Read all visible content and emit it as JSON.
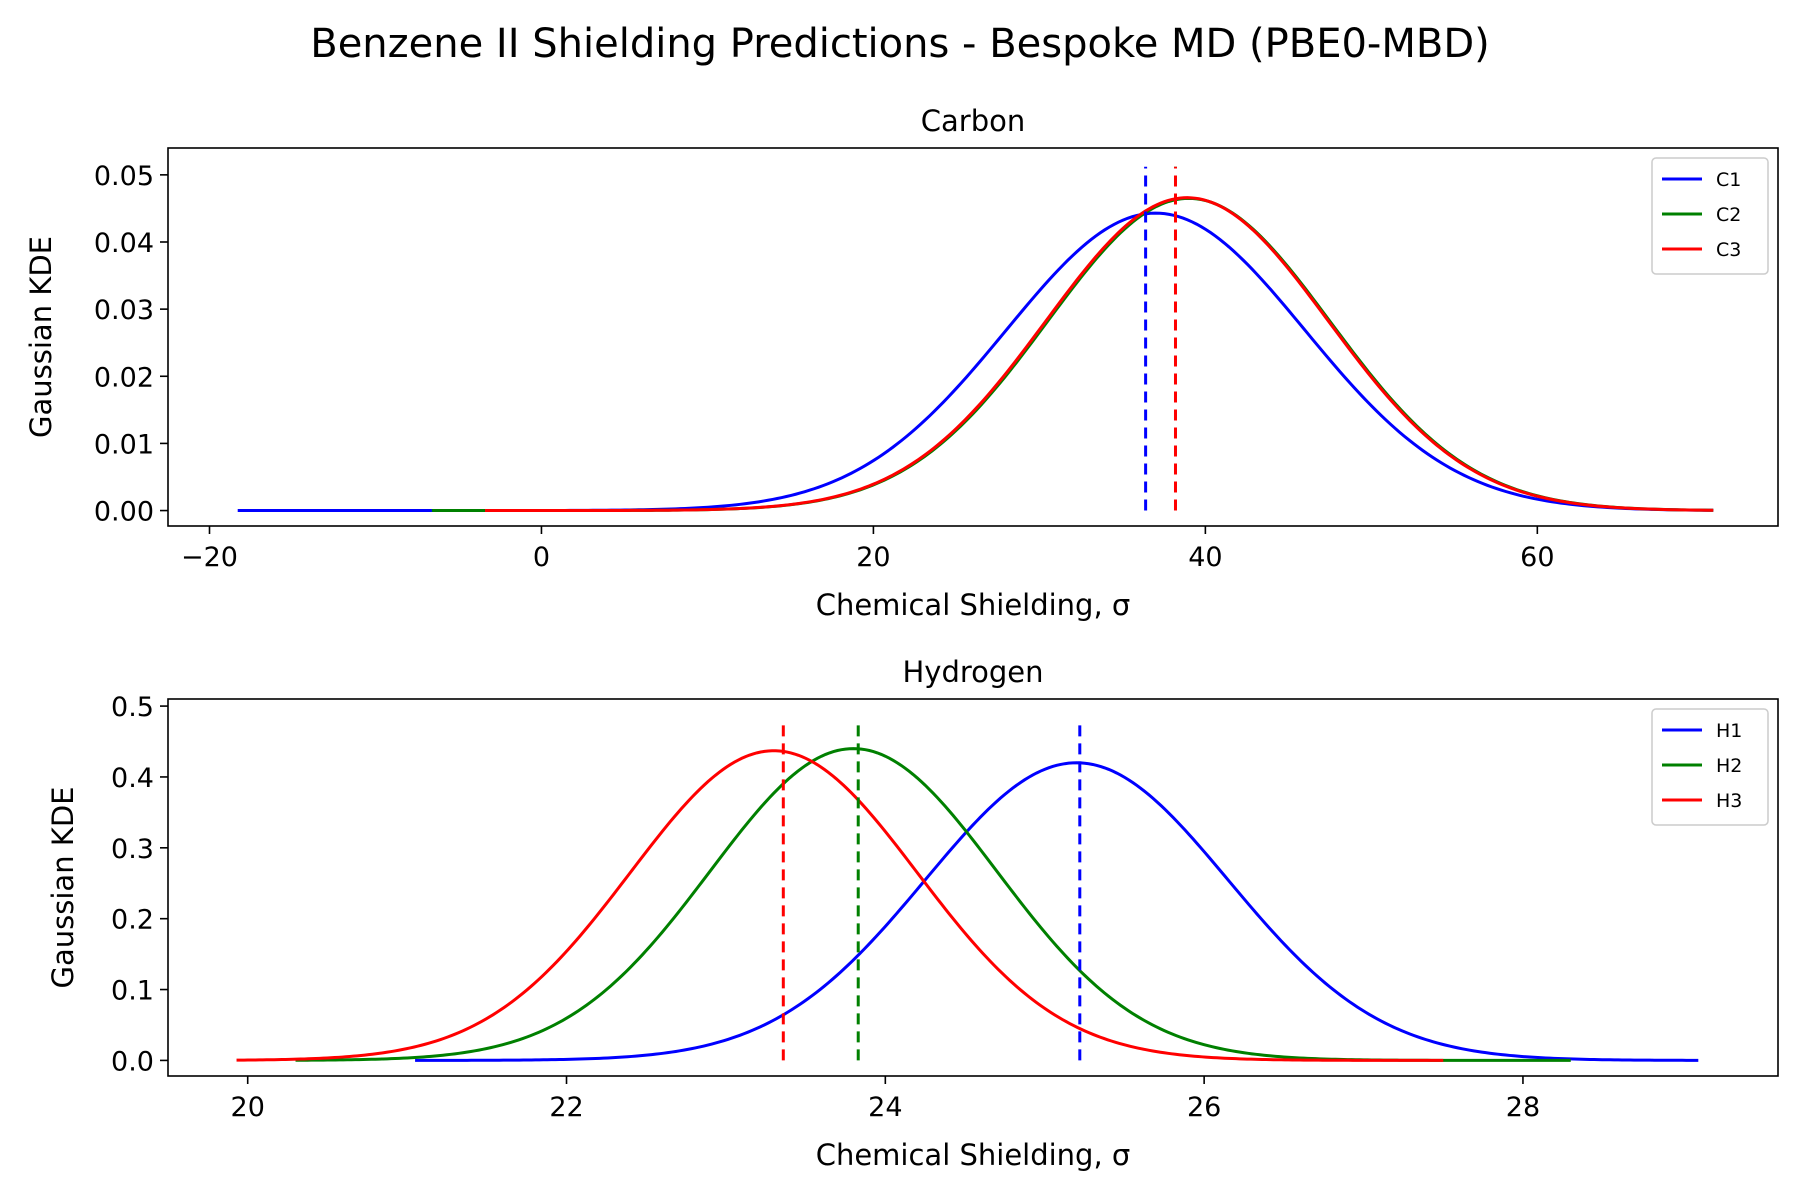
{
  "figure": {
    "title": "Benzene II Shielding Predictions - Bespoke MD (PBE0-MBD)"
  },
  "chart_data": [
    {
      "type": "line",
      "title": "Carbon",
      "xlabel": "Chemical Shielding, σ",
      "ylabel": "Gaussian KDE",
      "xlim": [
        -22.5,
        74.5
      ],
      "ylim": [
        -0.0023,
        0.054
      ],
      "xticks": [
        -20,
        0,
        20,
        40,
        60
      ],
      "xtick_labels": [
        "−20",
        "0",
        "20",
        "40",
        "60"
      ],
      "yticks": [
        0.0,
        0.01,
        0.02,
        0.03,
        0.04,
        0.05
      ],
      "ytick_labels": [
        "0.00",
        "0.01",
        "0.02",
        "0.03",
        "0.04",
        "0.05"
      ],
      "grid": false,
      "legend_position": "top-right",
      "series": [
        {
          "name": "C1",
          "color": "#0000ff",
          "x_range": [
            -18.3,
            70.6
          ],
          "mean": 37.0,
          "sd": 9.0,
          "peak": 0.0443,
          "dashed_x": 36.4
        },
        {
          "name": "C2",
          "color": "#008000",
          "x_range": [
            -6.6,
            70.6
          ],
          "mean": 39.0,
          "sd": 8.5,
          "peak": 0.0465,
          "dashed_x": 38.2
        },
        {
          "name": "C3",
          "color": "#ff0000",
          "x_range": [
            -3.4,
            70.6
          ],
          "mean": 38.9,
          "sd": 8.5,
          "peak": 0.0466,
          "dashed_x": 38.2
        }
      ],
      "dashed_line_top": 0.0512
    },
    {
      "type": "line",
      "title": "Hydrogen",
      "xlabel": "Chemical Shielding, σ",
      "ylabel": "Gaussian KDE",
      "xlim": [
        19.5,
        29.6
      ],
      "ylim": [
        -0.022,
        0.51
      ],
      "xticks": [
        20,
        22,
        24,
        26,
        28
      ],
      "xtick_labels": [
        "20",
        "22",
        "24",
        "26",
        "28"
      ],
      "yticks": [
        0.0,
        0.1,
        0.2,
        0.3,
        0.4,
        0.5
      ],
      "ytick_labels": [
        "0.0",
        "0.1",
        "0.2",
        "0.3",
        "0.4",
        "0.5"
      ],
      "grid": false,
      "legend_position": "top-right",
      "series": [
        {
          "name": "H1",
          "color": "#0000ff",
          "x_range": [
            21.05,
            29.1
          ],
          "mean": 25.2,
          "sd": 0.95,
          "peak": 0.42,
          "dashed_x": 25.22
        },
        {
          "name": "H2",
          "color": "#008000",
          "x_range": [
            20.3,
            28.3
          ],
          "mean": 23.8,
          "sd": 0.9,
          "peak": 0.44,
          "dashed_x": 23.83
        },
        {
          "name": "H3",
          "color": "#ff0000",
          "x_range": [
            19.93,
            27.5
          ],
          "mean": 23.3,
          "sd": 0.9,
          "peak": 0.437,
          "dashed_x": 23.36
        }
      ],
      "dashed_line_top": 0.482
    }
  ]
}
